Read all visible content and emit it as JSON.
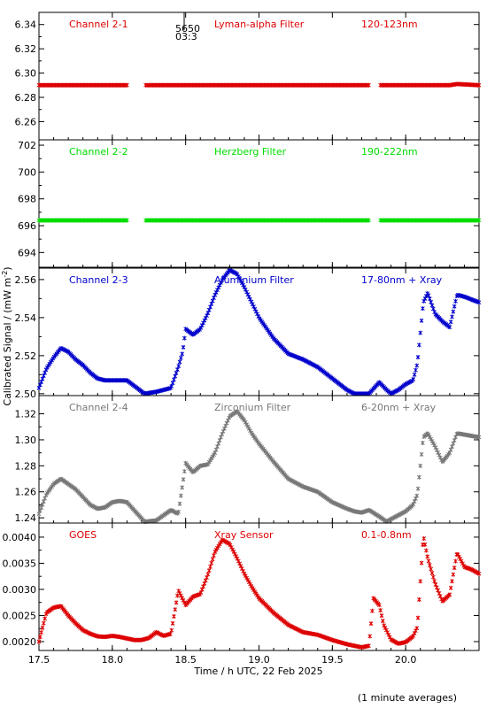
{
  "header": {
    "marker_top": "5650",
    "marker_bottom": "03:3"
  },
  "footer": {
    "xlabel": "Time / h UTC, 22 Feb 2025",
    "note": "(1 minute averages)"
  },
  "ylabel_shared": "Calibrated Signal / (mW m",
  "ylabel_sup": "-2",
  "ylabel_close": ")",
  "colors": {
    "ch1": "#dd0000",
    "ch2": "#00dd00",
    "ch3": "#0000cc",
    "ch4": "#777777",
    "goes": "#dd0000"
  },
  "chart_data": [
    {
      "type": "scatter",
      "labels": [
        "Channel 2-1",
        "Lyman-alpha Filter",
        "120-123nm"
      ],
      "color": "#dd0000",
      "xlim": [
        17.5,
        20.5
      ],
      "ylim": [
        6.245,
        6.35
      ],
      "yticks": [
        6.26,
        6.28,
        6.3,
        6.32,
        6.34
      ],
      "ytick_labels": [
        "6.26",
        "6.28",
        "6.30",
        "6.32",
        "6.34"
      ],
      "x": [
        17.5,
        18.1,
        18.22,
        19.75,
        19.82,
        20.3,
        20.35,
        20.5
      ],
      "y": [
        6.29,
        6.29,
        6.29,
        6.29,
        6.29,
        6.29,
        6.291,
        6.29
      ],
      "gaps": [
        [
          18.1,
          18.22
        ],
        [
          19.75,
          19.82
        ]
      ]
    },
    {
      "type": "scatter",
      "labels": [
        "Channel 2-2",
        "Herzberg Filter",
        "190-222nm"
      ],
      "color": "#00dd00",
      "xlim": [
        17.5,
        20.5
      ],
      "ylim": [
        692.9,
        702.4
      ],
      "yticks": [
        694,
        696,
        698,
        700,
        702
      ],
      "ytick_labels": [
        "694",
        "696",
        "698",
        "700",
        "702"
      ],
      "x": [
        17.5,
        18.1,
        18.22,
        19.75,
        19.82,
        20.5
      ],
      "y": [
        696.4,
        696.4,
        696.4,
        696.4,
        696.4,
        696.4
      ],
      "gaps": [
        [
          18.1,
          18.22
        ],
        [
          19.75,
          19.82
        ]
      ]
    },
    {
      "type": "scatter",
      "labels": [
        "Channel 2-3",
        "Aluminium Filter",
        "17-80nm + Xray"
      ],
      "color": "#0000cc",
      "xlim": [
        17.5,
        20.5
      ],
      "ylim": [
        2.499,
        2.566
      ],
      "yticks": [
        2.5,
        2.52,
        2.54,
        2.56
      ],
      "ytick_labels": [
        "2.50",
        "2.52",
        "2.54",
        "2.56"
      ],
      "x": [
        17.5,
        17.55,
        17.6,
        17.65,
        17.7,
        17.75,
        17.8,
        17.85,
        17.9,
        17.95,
        18.0,
        18.05,
        18.1,
        18.22,
        18.3,
        18.4,
        18.45,
        18.48,
        18.5,
        18.55,
        18.6,
        18.65,
        18.7,
        18.75,
        18.8,
        18.85,
        18.9,
        18.95,
        19.0,
        19.1,
        19.2,
        19.3,
        19.4,
        19.5,
        19.55,
        19.6,
        19.65,
        19.7,
        19.75,
        19.82,
        19.87,
        19.9,
        19.95,
        20.0,
        20.05,
        20.08,
        20.12,
        20.15,
        20.2,
        20.25,
        20.3,
        20.35,
        20.4,
        20.5
      ],
      "y": [
        2.503,
        2.513,
        2.519,
        2.524,
        2.522,
        2.518,
        2.515,
        2.511,
        2.508,
        2.507,
        2.507,
        2.507,
        2.507,
        2.5,
        2.501,
        2.503,
        2.514,
        2.522,
        2.534,
        2.531,
        2.534,
        2.542,
        2.552,
        2.56,
        2.565,
        2.563,
        2.556,
        2.548,
        2.54,
        2.529,
        2.521,
        2.518,
        2.514,
        2.508,
        2.505,
        2.502,
        2.5,
        2.5,
        2.5,
        2.506,
        2.502,
        2.5,
        2.502,
        2.505,
        2.507,
        2.516,
        2.548,
        2.553,
        2.542,
        2.538,
        2.535,
        2.552,
        2.551,
        2.548
      ]
    },
    {
      "type": "scatter",
      "labels": [
        "Channel 2-4",
        "Zirconium Filter",
        "6-20nm + Xray"
      ],
      "color": "#777777",
      "xlim": [
        17.5,
        20.5
      ],
      "ylim": [
        1.236,
        1.334
      ],
      "yticks": [
        1.24,
        1.26,
        1.28,
        1.3,
        1.32
      ],
      "ytick_labels": [
        "1.24",
        "1.26",
        "1.28",
        "1.30",
        "1.32"
      ],
      "x": [
        17.5,
        17.55,
        17.6,
        17.65,
        17.7,
        17.75,
        17.8,
        17.85,
        17.9,
        17.95,
        18.0,
        18.05,
        18.1,
        18.22,
        18.3,
        18.35,
        18.4,
        18.45,
        18.5,
        18.55,
        18.6,
        18.65,
        18.7,
        18.75,
        18.8,
        18.85,
        18.9,
        18.95,
        19.0,
        19.1,
        19.2,
        19.3,
        19.4,
        19.5,
        19.6,
        19.65,
        19.7,
        19.75,
        19.82,
        19.87,
        19.9,
        19.95,
        20.0,
        20.05,
        20.08,
        20.12,
        20.15,
        20.2,
        20.25,
        20.3,
        20.35,
        20.4,
        20.5
      ],
      "y": [
        1.243,
        1.258,
        1.266,
        1.27,
        1.266,
        1.262,
        1.256,
        1.25,
        1.247,
        1.248,
        1.252,
        1.253,
        1.252,
        1.237,
        1.238,
        1.242,
        1.246,
        1.243,
        1.282,
        1.275,
        1.28,
        1.281,
        1.29,
        1.305,
        1.318,
        1.322,
        1.315,
        1.305,
        1.297,
        1.283,
        1.27,
        1.264,
        1.26,
        1.252,
        1.247,
        1.245,
        1.244,
        1.246,
        1.241,
        1.237,
        1.239,
        1.242,
        1.245,
        1.25,
        1.258,
        1.302,
        1.305,
        1.295,
        1.283,
        1.29,
        1.305,
        1.304,
        1.302
      ]
    },
    {
      "type": "scatter",
      "labels": [
        "GOES",
        "Xray Sensor",
        "0.1-0.8nm"
      ],
      "color": "#dd0000",
      "xlim": [
        17.5,
        20.5
      ],
      "ylim": [
        0.00183,
        0.00427
      ],
      "yticks": [
        0.002,
        0.0025,
        0.003,
        0.0035,
        0.004
      ],
      "ytick_labels": [
        "0.0020",
        "0.0025",
        "0.0030",
        "0.0035",
        "0.0040"
      ],
      "x": [
        17.5,
        17.55,
        17.6,
        17.65,
        17.7,
        17.75,
        17.8,
        17.85,
        17.9,
        17.95,
        18.0,
        18.05,
        18.1,
        18.15,
        18.2,
        18.25,
        18.3,
        18.35,
        18.4,
        18.45,
        18.5,
        18.55,
        18.6,
        18.65,
        18.7,
        18.75,
        18.8,
        18.85,
        18.9,
        18.95,
        19.0,
        19.1,
        19.2,
        19.3,
        19.4,
        19.5,
        19.6,
        19.7,
        19.75,
        19.78,
        19.82,
        19.85,
        19.9,
        19.95,
        20.0,
        20.05,
        20.08,
        20.12,
        20.15,
        20.2,
        20.25,
        20.3,
        20.35,
        20.4,
        20.45,
        20.5
      ],
      "y": [
        0.002,
        0.00255,
        0.00265,
        0.00268,
        0.0025,
        0.00235,
        0.00222,
        0.00215,
        0.0021,
        0.00209,
        0.00211,
        0.00209,
        0.00206,
        0.00203,
        0.00203,
        0.00207,
        0.00218,
        0.00211,
        0.00215,
        0.00298,
        0.0027,
        0.00286,
        0.00291,
        0.00327,
        0.00372,
        0.00395,
        0.00387,
        0.0036,
        0.0033,
        0.00305,
        0.00283,
        0.00255,
        0.00232,
        0.00218,
        0.00213,
        0.00203,
        0.00195,
        0.00189,
        0.00192,
        0.00283,
        0.0027,
        0.00232,
        0.00204,
        0.00196,
        0.00199,
        0.0021,
        0.00228,
        0.00403,
        0.0036,
        0.00312,
        0.00277,
        0.0029,
        0.0037,
        0.00343,
        0.00338,
        0.0033
      ]
    }
  ],
  "x_axis": {
    "ticks": [
      17.5,
      18.0,
      18.5,
      19.0,
      19.5,
      20.0
    ],
    "tick_labels": [
      "17.5",
      "18.0",
      "18.5",
      "19.0",
      "19.5",
      "20.0"
    ]
  }
}
